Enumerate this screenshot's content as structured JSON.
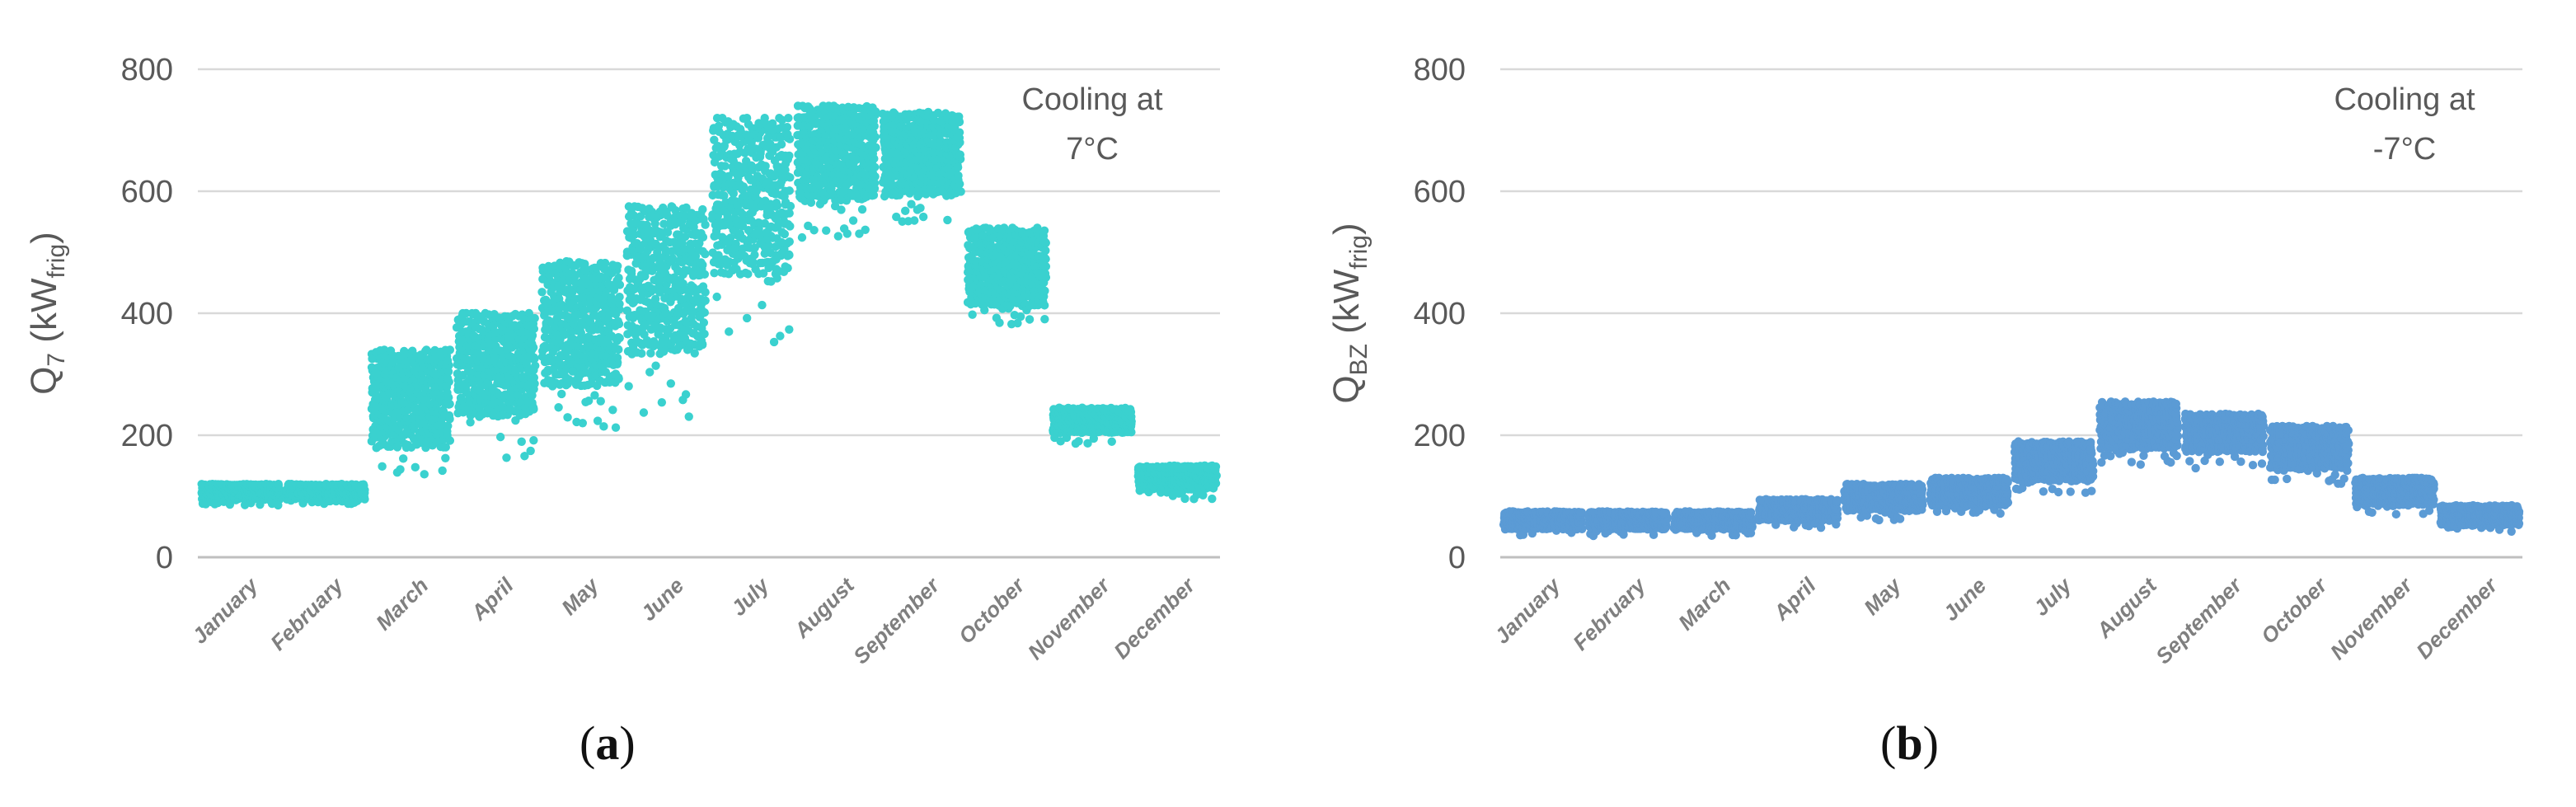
{
  "chart_data": [
    {
      "type": "scatter",
      "panel": "a",
      "title": "",
      "annotation_lines": [
        "Cooling at",
        "7°C"
      ],
      "ylabel": {
        "base": "Q",
        "sub": "7",
        "unit_base": "kW",
        "unit_sub": "frig"
      },
      "xlabel": "",
      "ylim": [
        0,
        800
      ],
      "yticks": [
        0,
        200,
        400,
        600,
        800
      ],
      "grid": true,
      "color": "#3ad1cf",
      "categories": [
        "January",
        "February",
        "March",
        "April",
        "May",
        "June",
        "July",
        "August",
        "September",
        "October",
        "November",
        "December"
      ],
      "series": [
        {
          "name": "Q7",
          "segments": [
            {
              "month": "January",
              "min": 85,
              "max": 120,
              "typical": 102
            },
            {
              "month": "February",
              "min": 85,
              "max": 120,
              "typical": 103
            },
            {
              "month": "March",
              "min": 120,
              "max": 340,
              "typical": 230
            },
            {
              "month": "April",
              "min": 150,
              "max": 400,
              "typical": 300
            },
            {
              "month": "May",
              "min": 200,
              "max": 485,
              "typical": 350
            },
            {
              "month": "June",
              "min": 230,
              "max": 575,
              "typical": 420
            },
            {
              "month": "July",
              "min": 350,
              "max": 720,
              "typical": 560
            },
            {
              "month": "August",
              "min": 520,
              "max": 740,
              "typical": 640
            },
            {
              "month": "September",
              "min": 520,
              "max": 730,
              "typical": 650
            },
            {
              "month": "October",
              "min": 380,
              "max": 540,
              "typical": 440
            },
            {
              "month": "November",
              "min": 185,
              "max": 245,
              "typical": 220
            },
            {
              "month": "December",
              "min": 95,
              "max": 150,
              "typical": 125
            }
          ]
        }
      ]
    },
    {
      "type": "scatter",
      "panel": "b",
      "title": "",
      "annotation_lines": [
        "Cooling at",
        "-7°C"
      ],
      "ylabel": {
        "base": "Q",
        "sub": "BZ",
        "unit_base": "kW",
        "unit_sub": "frig"
      },
      "xlabel": "",
      "ylim": [
        0,
        800
      ],
      "yticks": [
        0,
        200,
        400,
        600,
        800
      ],
      "grid": true,
      "color": "#5b9bd5",
      "categories": [
        "January",
        "February",
        "March",
        "April",
        "May",
        "June",
        "July",
        "August",
        "September",
        "October",
        "November",
        "December"
      ],
      "series": [
        {
          "name": "QBZ",
          "segments": [
            {
              "month": "January",
              "min": 35,
              "max": 75,
              "typical": 55
            },
            {
              "month": "February",
              "min": 35,
              "max": 75,
              "typical": 55
            },
            {
              "month": "March",
              "min": 35,
              "max": 75,
              "typical": 55
            },
            {
              "month": "April",
              "min": 45,
              "max": 95,
              "typical": 72
            },
            {
              "month": "May",
              "min": 60,
              "max": 120,
              "typical": 90
            },
            {
              "month": "June",
              "min": 65,
              "max": 130,
              "typical": 98
            },
            {
              "month": "July",
              "min": 100,
              "max": 190,
              "typical": 145
            },
            {
              "month": "August",
              "min": 150,
              "max": 255,
              "typical": 200
            },
            {
              "month": "September",
              "min": 145,
              "max": 235,
              "typical": 195
            },
            {
              "month": "October",
              "min": 120,
              "max": 215,
              "typical": 165
            },
            {
              "month": "November",
              "min": 70,
              "max": 130,
              "typical": 100
            },
            {
              "month": "December",
              "min": 40,
              "max": 85,
              "typical": 62
            }
          ]
        }
      ]
    }
  ],
  "panel_labels": {
    "a": "a",
    "b": "b"
  }
}
